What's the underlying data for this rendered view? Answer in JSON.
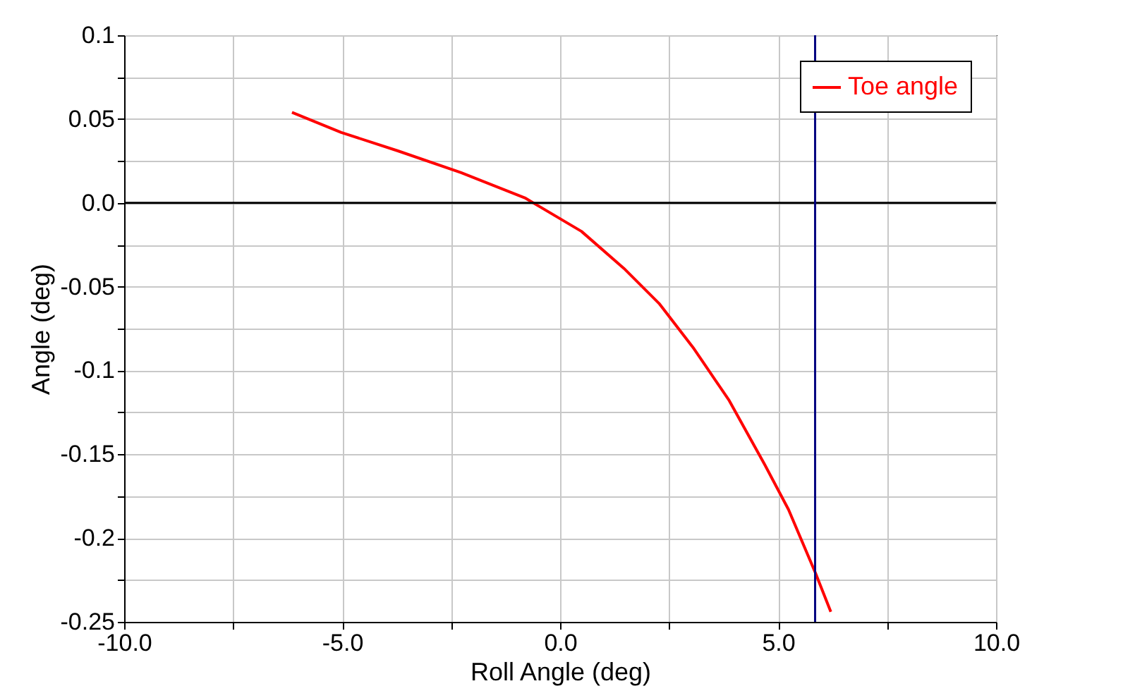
{
  "chart_data": {
    "type": "line",
    "xlabel": "Roll Angle (deg)",
    "ylabel": "Angle (deg)",
    "x": [
      -6.15,
      -5.02,
      -3.72,
      -2.27,
      -0.81,
      0.49,
      1.46,
      2.27,
      3.07,
      3.88,
      4.69,
      5.24,
      5.86,
      6.21
    ],
    "series": [
      {
        "name": "Toe angle",
        "color": "#ff0000",
        "values": [
          0.054,
          0.042,
          0.031,
          0.018,
          0.003,
          -0.017,
          -0.039,
          -0.06,
          -0.087,
          -0.118,
          -0.156,
          -0.183,
          -0.221,
          -0.244
        ]
      }
    ],
    "xlim": [
      -10,
      10
    ],
    "xticks": [
      {
        "value": -10,
        "label": "-10.0"
      },
      {
        "value": -7.5,
        "label": null
      },
      {
        "value": -5,
        "label": "-5.0"
      },
      {
        "value": -2.5,
        "label": null
      },
      {
        "value": 0,
        "label": "0.0"
      },
      {
        "value": 2.5,
        "label": null
      },
      {
        "value": 5,
        "label": "5.0"
      },
      {
        "value": 7.5,
        "label": null
      },
      {
        "value": 10,
        "label": "10.0"
      }
    ],
    "ylim": [
      -0.25,
      0.1
    ],
    "yticks": [
      -0.25,
      {
        "value": -0.225,
        "label": null
      },
      -0.2,
      {
        "value": -0.175,
        "label": null
      },
      -0.15,
      {
        "value": -0.125,
        "label": null
      },
      -0.1,
      {
        "value": -0.075,
        "label": null
      },
      -0.05,
      {
        "value": -0.025,
        "label": null
      },
      {
        "value": 0,
        "label": "0.0"
      },
      {
        "value": 0.025,
        "label": null
      },
      0.05,
      {
        "value": 0.075,
        "label": null
      },
      0.1
    ],
    "ref_lines": [
      {
        "axis": "y",
        "value": 0,
        "color": "#000000"
      },
      {
        "axis": "x",
        "value": 5.85,
        "color": "#000080"
      }
    ],
    "grid": true,
    "legend": "top right",
    "marker": "none",
    "line_style": "solid"
  }
}
